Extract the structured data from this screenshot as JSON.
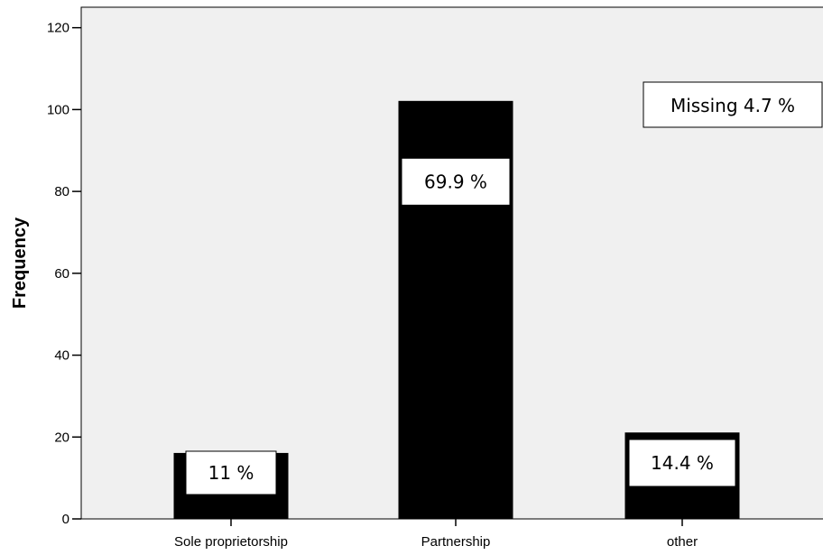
{
  "chart_data": {
    "type": "bar",
    "categories": [
      "Sole proprietorship",
      "Partnership",
      "other"
    ],
    "values": [
      16,
      102,
      21
    ],
    "data_labels": [
      "11 %",
      "69.9 %",
      "14.4 %"
    ],
    "annotation": "Missing 4.7 %",
    "xlabel": "",
    "ylabel": "Frequency",
    "ylim": [
      0,
      125
    ],
    "yticks": [
      0,
      20,
      40,
      60,
      80,
      100,
      120
    ],
    "grid": false,
    "colors": {
      "plot_background": "#f0f0f0",
      "bar": "#000000",
      "label_box": "#ffffff"
    }
  }
}
